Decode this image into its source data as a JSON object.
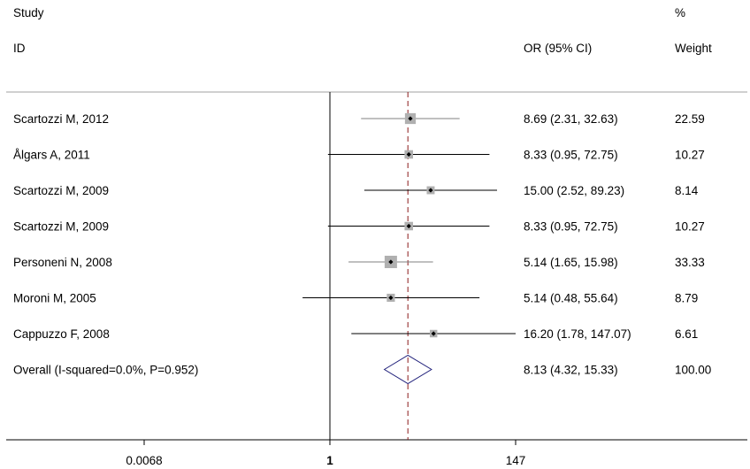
{
  "chart_data": {
    "type": "forest",
    "scale": "log",
    "header": {
      "study_line1": "Study",
      "study_line2": "ID",
      "ci_header": "OR (95% CI)",
      "weight_line1": "%",
      "weight_line2": "Weight"
    },
    "xticks": [
      {
        "value": 0.0068,
        "label": "0.0068"
      },
      {
        "value": 1,
        "label": "1"
      },
      {
        "value": 147,
        "label": "147"
      }
    ],
    "xlim": [
      0.0068,
      147
    ],
    "null_value": 1,
    "overall_line": 8.13,
    "studies": [
      {
        "label": "Scartozzi M, 2012",
        "or": 8.69,
        "lo": 2.31,
        "hi": 32.63,
        "ci_text": "8.69 (2.31, 32.63)",
        "weight": 22.59,
        "weight_text": "22.59",
        "line_color": "#808080"
      },
      {
        "label": "Ålgars A, 2011",
        "or": 8.33,
        "lo": 0.95,
        "hi": 72.75,
        "ci_text": "8.33 (0.95, 72.75)",
        "weight": 10.27,
        "weight_text": "10.27",
        "line_color": "#000000"
      },
      {
        "label": "Scartozzi M, 2009",
        "or": 15.0,
        "lo": 2.52,
        "hi": 89.23,
        "ci_text": "15.00 (2.52, 89.23)",
        "weight": 8.14,
        "weight_text": "8.14",
        "line_color": "#000000"
      },
      {
        "label": "Scartozzi M, 2009",
        "or": 8.33,
        "lo": 0.95,
        "hi": 72.75,
        "ci_text": "8.33 (0.95, 72.75)",
        "weight": 10.27,
        "weight_text": "10.27",
        "line_color": "#000000"
      },
      {
        "label": "Personeni N, 2008",
        "or": 5.14,
        "lo": 1.65,
        "hi": 15.98,
        "ci_text": "5.14 (1.65, 15.98)",
        "weight": 33.33,
        "weight_text": "33.33",
        "line_color": "#808080"
      },
      {
        "label": "Moroni M, 2005",
        "or": 5.14,
        "lo": 0.48,
        "hi": 55.64,
        "ci_text": "5.14 (0.48, 55.64)",
        "weight": 8.79,
        "weight_text": "8.79",
        "line_color": "#000000"
      },
      {
        "label": "Cappuzzo F, 2008",
        "or": 16.2,
        "lo": 1.78,
        "hi": 147.07,
        "ci_text": "16.20 (1.78, 147.07)",
        "weight": 6.61,
        "weight_text": "6.61",
        "line_color": "#000000"
      }
    ],
    "overall": {
      "label": "Overall (I-squared=0.0%, P=0.952)",
      "or": 8.13,
      "lo": 4.32,
      "hi": 15.33,
      "ci_text": "8.13 (4.32, 15.33)",
      "weight_text": "100.00"
    },
    "colors": {
      "box": "#b0b0b0",
      "point": "#000000",
      "overall_diamond": "#1f1f7a",
      "overall_line": "#8b1a1a",
      "axis": "#000000",
      "separator": "#a0a0a0"
    }
  }
}
